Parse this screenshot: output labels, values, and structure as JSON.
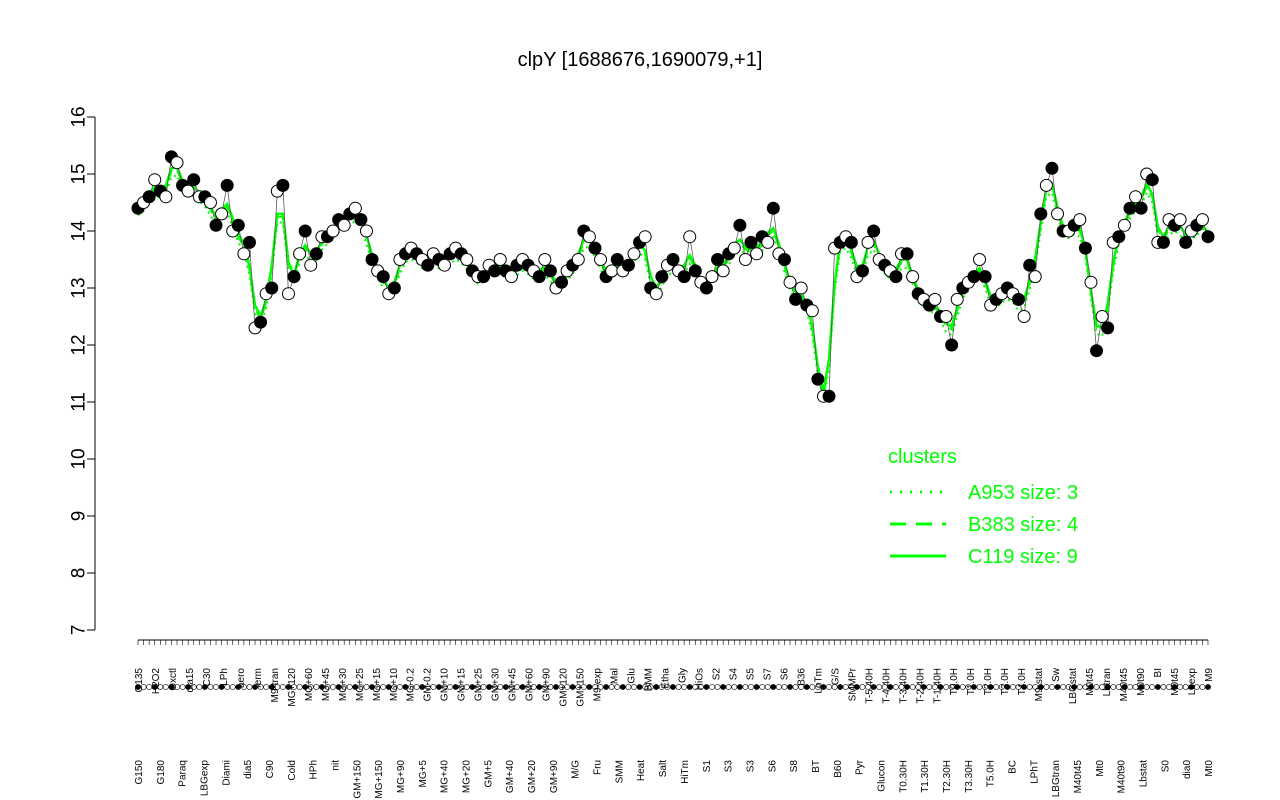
{
  "chart_data": {
    "type": "line",
    "title": "clpY [1688676,1690079,+1]",
    "xlabel": "",
    "ylabel": "",
    "ylim": [
      7,
      16
    ],
    "yticks": [
      7,
      8,
      9,
      10,
      11,
      12,
      13,
      14,
      15,
      16
    ],
    "x_top_labels": [
      "G135",
      "H2O2",
      "Oxctl",
      "dia15",
      "C30",
      "LPh",
      "aero",
      "ferm",
      "M9-tran",
      "MG+120",
      "MG+60",
      "MG+45",
      "MG+30",
      "MG+25",
      "MG+15",
      "MG+10",
      "MG-0.2",
      "GM-0.2",
      "GM+10",
      "GM+15",
      "GM+25",
      "GM+30",
      "GM+45",
      "GM+60",
      "GM+90",
      "GM+120",
      "GM+150",
      "M9-exp",
      "Mal",
      "Glu",
      "BMM",
      "Etha",
      "Gly",
      "HiOs",
      "S2",
      "S4",
      "S5",
      "S7",
      "S6",
      "B36",
      "LoTm",
      "G/S",
      "SMMPr",
      "T-5.40H",
      "T-4.40H",
      "T-3.40H",
      "T-2.40H",
      "T-1.40H",
      "T0.0H",
      "T1.0H",
      "T2.0H",
      "T3.0H",
      "T4.0H",
      "M9-stat",
      "Sw",
      "LBGstat",
      "M0t45",
      "Lbtran",
      "M40t45",
      "M0t90",
      "BI",
      "M0t45",
      "Lbexp",
      "M9"
    ],
    "x_bottom_labels": [
      "G150",
      "G180",
      "Paraq",
      "LBGexp",
      "Diami",
      "dia5",
      "C90",
      "Cold",
      "HPh",
      "nit",
      "GM+150",
      "MG+150",
      "MG+90",
      "MG+5",
      "MG+40",
      "MG+20",
      "GM+5",
      "GM+40",
      "GM+20",
      "GM+90",
      "M/G",
      "Fru",
      "SMM",
      "Heat",
      "Salt",
      "HiTm",
      "S1",
      "S3",
      "S3",
      "S6",
      "S8",
      "BT",
      "B60",
      "Pyr",
      "Glucon",
      "T0.30H",
      "T1.30H",
      "T2.30H",
      "T3.30H",
      "T5.0H",
      "BC",
      "LPhT",
      "LBGtran",
      "M40t45",
      "Mt0",
      "M40t90",
      "Lbstat",
      "S0",
      "dia0",
      "Mt0"
    ],
    "series": [
      {
        "name": "",
        "values": [
          14.4,
          14.5,
          14.6,
          14.9,
          14.7,
          14.6,
          15.3,
          15.2,
          14.8,
          14.7,
          14.9,
          14.6,
          14.6,
          14.5,
          14.1,
          14.3,
          14.8,
          14.0,
          14.1,
          13.6,
          13.8,
          12.3,
          12.4,
          12.9,
          13.0,
          14.7,
          14.8,
          12.9,
          13.2,
          13.6,
          14.0,
          13.4,
          13.6,
          13.9,
          13.9,
          14.0,
          14.2,
          14.1,
          14.3,
          14.4,
          14.2,
          14.0,
          13.5,
          13.3,
          13.2,
          12.9,
          13.0,
          13.5,
          13.6,
          13.7,
          13.6,
          13.5,
          13.4,
          13.6,
          13.5,
          13.4,
          13.6,
          13.7,
          13.6,
          13.5,
          13.3,
          13.2,
          13.2,
          13.4,
          13.3,
          13.5,
          13.3,
          13.2,
          13.4,
          13.5,
          13.4,
          13.3,
          13.2,
          13.5,
          13.3,
          13.0,
          13.1,
          13.3,
          13.4,
          13.5,
          14.0,
          13.9,
          13.7,
          13.5,
          13.2,
          13.3,
          13.5,
          13.3,
          13.4,
          13.6,
          13.8,
          13.9,
          13.0,
          12.9,
          13.2,
          13.4,
          13.5,
          13.3,
          13.2,
          13.9,
          13.3,
          13.1,
          13.0,
          13.2,
          13.5,
          13.3,
          13.6,
          13.7,
          14.1,
          13.5,
          13.8,
          13.6,
          13.9,
          13.8,
          14.4,
          13.6,
          13.5,
          13.1,
          12.8,
          13.0,
          12.7,
          12.6,
          11.4,
          11.1,
          11.1,
          13.7,
          13.8,
          13.9,
          13.8,
          13.2,
          13.3,
          13.8,
          14.0,
          13.5,
          13.4,
          13.3,
          13.2,
          13.6,
          13.6,
          13.2,
          12.9,
          12.8,
          12.7,
          12.8,
          12.5,
          12.5,
          12.0,
          12.8,
          13.0,
          13.1,
          13.2,
          13.5,
          13.2,
          12.7,
          12.8,
          12.9,
          13.0,
          12.9,
          12.8,
          12.5,
          13.4,
          13.2,
          14.3,
          14.8,
          15.1,
          14.3,
          14.0,
          14.0,
          14.1,
          14.2,
          13.7,
          13.1,
          11.9,
          12.5,
          12.3,
          13.8,
          13.9,
          14.1,
          14.4,
          14.6,
          14.4,
          15.0,
          14.9,
          13.8,
          13.8,
          14.2,
          14.1,
          14.2,
          13.8,
          14.0,
          14.1,
          14.2,
          13.9
        ]
      }
    ],
    "clusters_title": "clusters",
    "clusters": [
      {
        "name": "A953 size: 3",
        "style": "dotted"
      },
      {
        "name": "B383 size: 4",
        "style": "dashed"
      },
      {
        "name": "C119 size: 9",
        "style": "solid"
      }
    ],
    "colors": {
      "cluster_line": "#00ff00",
      "marker_fill_dark": "#000000",
      "marker_fill_light": "#ffffff",
      "marker_stroke": "#000000",
      "axis": "#000000"
    }
  }
}
